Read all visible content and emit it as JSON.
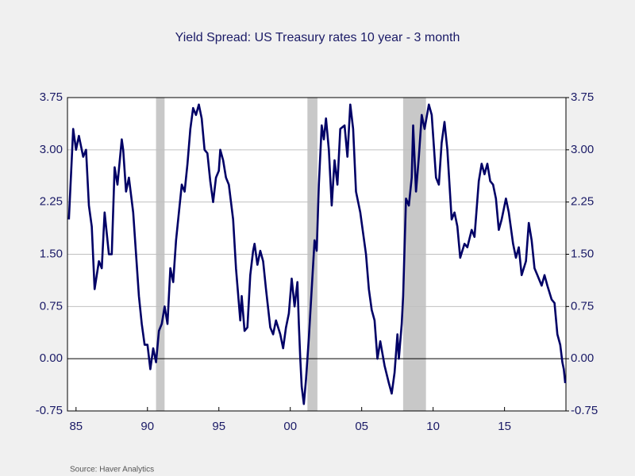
{
  "chart_data": {
    "type": "line",
    "title": "Yield Spread:  US Treasury rates 10 year - 3 month",
    "source": "Source:  Haver Analytics",
    "xlim": [
      1984.4,
      2019.3
    ],
    "xticks": [
      {
        "value": 1985,
        "label": "85"
      },
      {
        "value": 1990,
        "label": "90"
      },
      {
        "value": 1995,
        "label": "95"
      },
      {
        "value": 2000,
        "label": "00"
      },
      {
        "value": 2005,
        "label": "05"
      },
      {
        "value": 2010,
        "label": "10"
      },
      {
        "value": 2015,
        "label": "15"
      }
    ],
    "ylim": [
      -0.75,
      3.75
    ],
    "yticks": [
      -0.75,
      {
        "value": 0,
        "label": "0.00"
      },
      0.75,
      {
        "value": 1.5,
        "label": "1.50"
      },
      2.25,
      {
        "value": 3,
        "label": "3.00"
      },
      3.75
    ],
    "y2lim": [
      -0.75,
      3.75
    ],
    "y2ticks": [
      -0.75,
      {
        "value": 0,
        "label": "0.00"
      },
      0.75,
      {
        "value": 1.5,
        "label": "1.50"
      },
      2.25,
      {
        "value": 3,
        "label": "3.00"
      },
      3.75
    ],
    "grid": true,
    "recessions": [
      [
        1990.6,
        1991.2
      ],
      [
        2001.2,
        2001.9
      ],
      [
        2007.9,
        2009.5
      ]
    ],
    "recession_color": "#c8c8c8",
    "series": [
      {
        "color": "#000066",
        "x": [
          1984.5,
          1984.8,
          1985.0,
          1985.2,
          1985.5,
          1985.7,
          1985.9,
          1986.1,
          1986.3,
          1986.6,
          1986.8,
          1987.0,
          1987.3,
          1987.5,
          1987.7,
          1987.9,
          1988.2,
          1988.3,
          1988.5,
          1988.7,
          1989.0,
          1989.2,
          1989.4,
          1989.6,
          1989.8,
          1990.0,
          1990.2,
          1990.4,
          1990.6,
          1990.8,
          1991.0,
          1991.2,
          1991.4,
          1991.6,
          1991.8,
          1992.0,
          1992.2,
          1992.4,
          1992.6,
          1992.8,
          1993.0,
          1993.2,
          1993.4,
          1993.6,
          1993.8,
          1994.0,
          1994.2,
          1994.4,
          1994.6,
          1994.8,
          1995.0,
          1995.1,
          1995.3,
          1995.5,
          1995.7,
          1996.0,
          1996.2,
          1996.5,
          1996.6,
          1996.8,
          1997.0,
          1997.2,
          1997.4,
          1997.5,
          1997.7,
          1997.9,
          1998.1,
          1998.3,
          1998.6,
          1998.8,
          1999.0,
          1999.3,
          1999.5,
          1999.7,
          1999.9,
          2000.1,
          2000.3,
          2000.5,
          2000.6,
          2000.7,
          2000.8,
          2000.95,
          2001.1,
          2001.3,
          2001.5,
          2001.7,
          2001.85,
          2002.0,
          2002.2,
          2002.35,
          2002.5,
          2002.7,
          2002.9,
          2003.1,
          2003.3,
          2003.5,
          2003.8,
          2004.0,
          2004.2,
          2004.4,
          2004.6,
          2004.9,
          2005.1,
          2005.3,
          2005.5,
          2005.7,
          2005.9,
          2006.1,
          2006.3,
          2006.6,
          2006.9,
          2007.1,
          2007.3,
          2007.5,
          2007.6,
          2007.8,
          2007.9,
          2008.1,
          2008.3,
          2008.5,
          2008.6,
          2008.8,
          2009.0,
          2009.2,
          2009.4,
          2009.7,
          2009.9,
          2010.2,
          2010.4,
          2010.6,
          2010.8,
          2011.0,
          2011.3,
          2011.5,
          2011.7,
          2011.9,
          2012.2,
          2012.4,
          2012.7,
          2012.9,
          2013.2,
          2013.4,
          2013.6,
          2013.8,
          2014.0,
          2014.2,
          2014.4,
          2014.6,
          2014.8,
          2015.1,
          2015.3,
          2015.6,
          2015.8,
          2016.0,
          2016.2,
          2016.5,
          2016.7,
          2016.9,
          2017.1,
          2017.3,
          2017.6,
          2017.8,
          2018.0,
          2018.3,
          2018.5,
          2018.7,
          2018.9,
          2019.05,
          2019.15,
          2019.25
        ],
        "values": [
          2.0,
          3.3,
          3.0,
          3.2,
          2.9,
          3.0,
          2.2,
          1.9,
          1.0,
          1.4,
          1.3,
          2.1,
          1.5,
          1.5,
          2.75,
          2.5,
          3.15,
          3.0,
          2.4,
          2.6,
          2.1,
          1.5,
          0.9,
          0.5,
          0.2,
          0.2,
          -0.15,
          0.15,
          -0.05,
          0.4,
          0.5,
          0.75,
          0.5,
          1.3,
          1.1,
          1.7,
          2.1,
          2.5,
          2.4,
          2.8,
          3.3,
          3.6,
          3.5,
          3.65,
          3.45,
          3.0,
          2.95,
          2.55,
          2.25,
          2.6,
          2.7,
          3.0,
          2.85,
          2.6,
          2.5,
          2.0,
          1.3,
          0.55,
          0.9,
          0.4,
          0.45,
          1.2,
          1.55,
          1.65,
          1.35,
          1.55,
          1.4,
          1.0,
          0.45,
          0.35,
          0.55,
          0.35,
          0.15,
          0.45,
          0.65,
          1.15,
          0.75,
          1.1,
          0.5,
          0.0,
          -0.4,
          -0.65,
          -0.3,
          0.3,
          1.0,
          1.7,
          1.55,
          2.5,
          3.35,
          3.15,
          3.45,
          3.0,
          2.2,
          2.85,
          2.5,
          3.3,
          3.35,
          2.9,
          3.65,
          3.3,
          2.4,
          2.1,
          1.8,
          1.5,
          1.0,
          0.7,
          0.55,
          0.0,
          0.25,
          -0.1,
          -0.35,
          -0.5,
          -0.2,
          0.35,
          0.0,
          0.5,
          0.9,
          2.3,
          2.2,
          2.6,
          3.35,
          2.4,
          2.9,
          3.5,
          3.3,
          3.65,
          3.5,
          2.6,
          2.5,
          3.1,
          3.4,
          3.0,
          2.0,
          2.1,
          1.9,
          1.45,
          1.65,
          1.6,
          1.85,
          1.75,
          2.55,
          2.8,
          2.65,
          2.8,
          2.55,
          2.5,
          2.3,
          1.85,
          2.0,
          2.3,
          2.1,
          1.65,
          1.45,
          1.6,
          1.2,
          1.4,
          1.95,
          1.7,
          1.3,
          1.2,
          1.05,
          1.2,
          1.05,
          0.85,
          0.8,
          0.35,
          0.2,
          -0.05,
          -0.15,
          -0.35
        ]
      }
    ]
  }
}
